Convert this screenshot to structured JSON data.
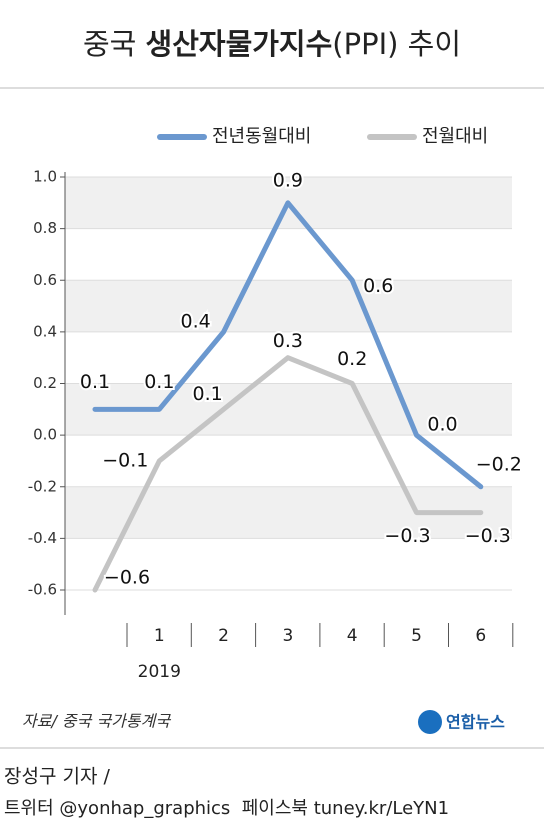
{
  "chart_data": {
    "type": "line",
    "title_parts": [
      "중국 ",
      "생산자물가지수",
      "(PPI) 추이"
    ],
    "categories": [
      null,
      "1",
      "2",
      "3",
      "4",
      "5",
      "6"
    ],
    "year_label": "2019",
    "series": [
      {
        "name": "전년동월대비",
        "color": "#6b98cf",
        "values": [
          0.1,
          0.1,
          0.4,
          0.9,
          0.6,
          0.0,
          -0.2
        ],
        "value_labels": [
          "0.1",
          "0.1",
          "0.4",
          "0.9",
          "0.6",
          "0.0",
          "−0.2"
        ]
      },
      {
        "name": "전월대비",
        "color": "#c4c4c4",
        "values": [
          -0.6,
          -0.1,
          0.1,
          0.3,
          0.2,
          -0.3,
          -0.3
        ],
        "value_labels": [
          "−0.6",
          "−0.1",
          "0.1",
          "0.3",
          "0.2",
          "−0.3",
          "−0.3"
        ]
      }
    ],
    "ylim": [
      -0.6,
      1.0
    ],
    "yticks": [
      {
        "value": 1.0,
        "label": "1.0"
      },
      0.8,
      0.6,
      0.4,
      0.2,
      {
        "value": 0,
        "label": "0.0"
      },
      -0.2,
      -0.4,
      -0.6
    ],
    "grid": true,
    "source": "자료/ 중국 국가통계국",
    "logo": "연합뉴스",
    "byline": "장성구 기자 /",
    "social": "트위터 @yonhap_graphics  페이스북 tuney.kr/LeYN1"
  }
}
